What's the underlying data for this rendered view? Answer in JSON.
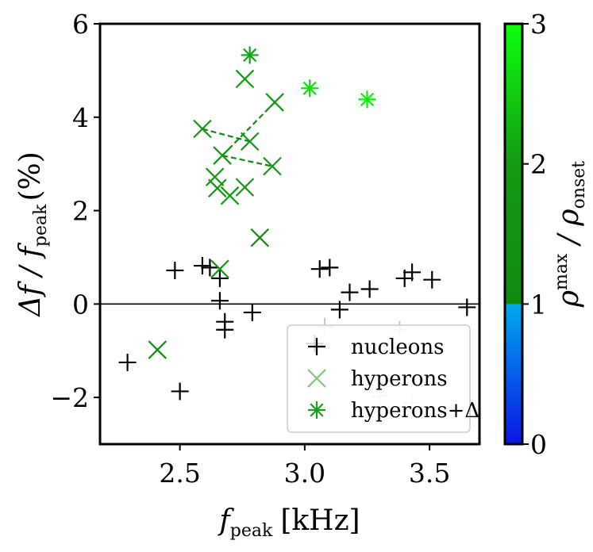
{
  "chart_data": {
    "type": "scatter",
    "xlabel": {
      "main": "f",
      "sub": "peak",
      "unit": "[kHz]"
    },
    "ylabel": {
      "pre": "Δf / f",
      "sub": "peak",
      "post": "(%)"
    },
    "xlim": [
      2.18,
      3.7
    ],
    "ylim": [
      -3,
      6
    ],
    "xticks": [
      {
        "value": 2.5,
        "label": "2.5"
      },
      {
        "value": 3.0,
        "label": "3.0"
      },
      {
        "value": 3.5,
        "label": "3.5"
      }
    ],
    "yticks": [
      {
        "value": -2,
        "label": "−2"
      },
      {
        "value": 0,
        "label": "0"
      },
      {
        "value": 2,
        "label": "2"
      },
      {
        "value": 4,
        "label": "4"
      },
      {
        "value": 6,
        "label": "6"
      }
    ],
    "reference_line_y": 0,
    "colorbar": {
      "range": [
        0,
        3
      ],
      "ticks": [
        {
          "value": 0,
          "label": "0"
        },
        {
          "value": 1,
          "label": "1"
        },
        {
          "value": 2,
          "label": "2"
        },
        {
          "value": 3,
          "label": "3"
        }
      ],
      "label": {
        "base": "ρ",
        "sup": "max",
        "mid": " / ρ",
        "sub": "onset"
      },
      "colors": {
        "c0": "#0a14e6",
        "c1": "#00aaee",
        "c1b": "#0f8a0f",
        "c2": "#139b13",
        "c3": "#0cff0c"
      }
    },
    "legend": {
      "position": "lower-right",
      "entries": [
        {
          "marker": "plus",
          "label": "nucleons",
          "color": "#000000"
        },
        {
          "marker": "x",
          "label": "hyperons",
          "color": "#7dc87d"
        },
        {
          "marker": "star",
          "label": "hyperons+Δ",
          "color": "#1f9a1f"
        }
      ]
    },
    "series": [
      {
        "name": "nucleons",
        "marker": "plus",
        "color": "#000000",
        "points": [
          {
            "x": 2.29,
            "y": -1.25
          },
          {
            "x": 2.48,
            "y": 0.72
          },
          {
            "x": 2.5,
            "y": -1.87
          },
          {
            "x": 2.59,
            "y": 0.82
          },
          {
            "x": 2.62,
            "y": 0.78
          },
          {
            "x": 2.66,
            "y": 0.55
          },
          {
            "x": 2.66,
            "y": 0.07
          },
          {
            "x": 2.68,
            "y": -0.38
          },
          {
            "x": 2.68,
            "y": -0.55
          },
          {
            "x": 2.79,
            "y": -0.18
          },
          {
            "x": 3.04,
            "y": -0.85
          },
          {
            "x": 3.06,
            "y": 0.75
          },
          {
            "x": 3.1,
            "y": 0.78
          },
          {
            "x": 3.14,
            "y": -0.12
          },
          {
            "x": 3.18,
            "y": 0.25
          },
          {
            "x": 3.26,
            "y": 0.32
          },
          {
            "x": 3.4,
            "y": 0.55
          },
          {
            "x": 3.43,
            "y": 0.68
          },
          {
            "x": 3.51,
            "y": 0.52
          },
          {
            "x": 3.65,
            "y": -0.07
          }
        ]
      },
      {
        "name": "nucleons (faded)",
        "marker": "plus",
        "color": "#c8c8c8",
        "points": [
          {
            "x": 3.08,
            "y": -0.48
          },
          {
            "x": 3.38,
            "y": -0.55
          },
          {
            "x": 3.3,
            "y": -1.97
          },
          {
            "x": 3.43,
            "y": -2.12
          }
        ]
      },
      {
        "name": "hyperons",
        "marker": "x",
        "points": [
          {
            "x": 2.41,
            "y": -0.98,
            "rho": 1.15
          },
          {
            "x": 2.82,
            "y": 1.42,
            "rho": 1.15
          },
          {
            "x": 2.66,
            "y": 0.75,
            "rho": 1.75
          },
          {
            "x": 2.59,
            "y": 3.75,
            "rho": 1.8
          },
          {
            "x": 2.67,
            "y": 3.18,
            "rho": 1.8
          },
          {
            "x": 2.64,
            "y": 2.72,
            "rho": 1.85
          },
          {
            "x": 2.65,
            "y": 2.48,
            "rho": 1.85
          },
          {
            "x": 2.7,
            "y": 2.32,
            "rho": 1.8
          },
          {
            "x": 2.76,
            "y": 2.5,
            "rho": 1.8
          },
          {
            "x": 2.78,
            "y": 3.48,
            "rho": 1.8
          },
          {
            "x": 2.87,
            "y": 2.95,
            "rho": 1.8
          },
          {
            "x": 2.88,
            "y": 4.32,
            "rho": 1.85
          },
          {
            "x": 2.76,
            "y": 4.82,
            "rho": 1.85
          }
        ]
      },
      {
        "name": "hyperons+Δ",
        "marker": "star",
        "points": [
          {
            "x": 2.78,
            "y": 5.33,
            "rho": 2.1
          },
          {
            "x": 3.02,
            "y": 4.62,
            "rho": 2.7
          },
          {
            "x": 3.25,
            "y": 4.38,
            "rho": 2.85
          }
        ]
      }
    ],
    "dashed_connections": [
      [
        {
          "x": 2.59,
          "y": 3.75
        },
        {
          "x": 2.78,
          "y": 3.48
        }
      ],
      [
        {
          "x": 2.67,
          "y": 3.18
        },
        {
          "x": 2.88,
          "y": 4.32
        }
      ],
      [
        {
          "x": 2.67,
          "y": 3.18
        },
        {
          "x": 2.87,
          "y": 2.95
        }
      ]
    ]
  }
}
